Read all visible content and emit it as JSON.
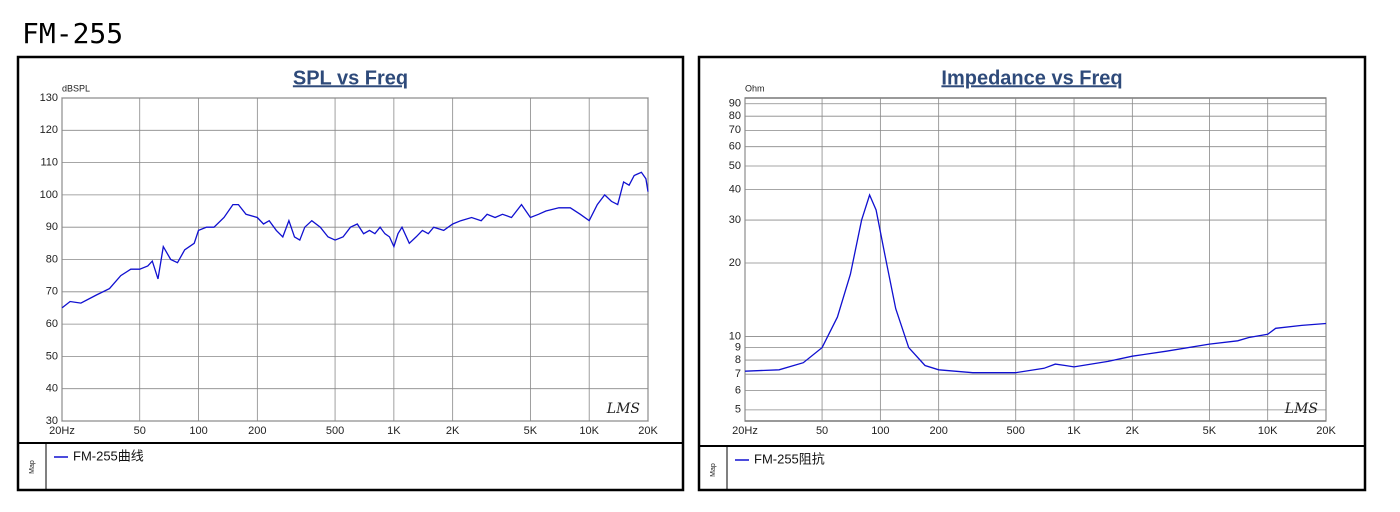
{
  "heading": "FM-255",
  "chart_data": [
    {
      "type": "line",
      "title": "SPL vs Freq",
      "y_label": "dBSPL",
      "watermark": "LMS",
      "legend_title": "Map",
      "x_scale": "log",
      "y_scale": "linear",
      "grid": true,
      "xlim": [
        20,
        20000
      ],
      "xticks": [
        {
          "value": 20,
          "label": "20Hz"
        },
        50,
        100,
        200,
        500,
        {
          "value": 1000,
          "label": "1K"
        },
        {
          "value": 2000,
          "label": "2K"
        },
        {
          "value": 5000,
          "label": "5K"
        },
        {
          "value": 10000,
          "label": "10K"
        },
        {
          "value": 20000,
          "label": "20K"
        }
      ],
      "ylim": [
        30,
        130
      ],
      "yticks": [
        30,
        40,
        50,
        60,
        70,
        80,
        90,
        100,
        110,
        120,
        130
      ],
      "x": [
        20,
        22,
        25,
        30,
        35,
        40,
        45,
        50,
        55,
        58,
        62,
        66,
        72,
        78,
        85,
        95,
        100,
        110,
        120,
        135,
        150,
        160,
        175,
        200,
        215,
        230,
        250,
        270,
        290,
        310,
        330,
        350,
        380,
        420,
        460,
        500,
        550,
        600,
        650,
        700,
        750,
        800,
        850,
        900,
        950,
        1000,
        1050,
        1100,
        1200,
        1300,
        1400,
        1500,
        1600,
        1800,
        2000,
        2200,
        2500,
        2800,
        3000,
        3300,
        3600,
        4000,
        4500,
        5000,
        5500,
        6000,
        7000,
        8000,
        9000,
        10000,
        11000,
        12000,
        13000,
        14000,
        15000,
        16000,
        17000,
        18500,
        19500,
        20000
      ],
      "series": [
        {
          "name": "FM-255曲线",
          "color": "#1010d0",
          "values": [
            65,
            67,
            66.5,
            69,
            71,
            75,
            77,
            77,
            78,
            79.5,
            74,
            84,
            80,
            79,
            83,
            85,
            89,
            90,
            90,
            93,
            97,
            97,
            94,
            93,
            91,
            92,
            89,
            87,
            92,
            87,
            86,
            90,
            92,
            90,
            87,
            86,
            87,
            90,
            91,
            88,
            89,
            88,
            90,
            88,
            87,
            84,
            88,
            90,
            85,
            87,
            89,
            88,
            90,
            89,
            91,
            92,
            93,
            92,
            94,
            93,
            94,
            93,
            97,
            93,
            94,
            95,
            96,
            96,
            94,
            92,
            97,
            100,
            98,
            97,
            104,
            103,
            106,
            107,
            105,
            101
          ]
        }
      ]
    },
    {
      "type": "line",
      "title": "Impedance vs Freq",
      "y_label": "Ohm",
      "watermark": "LMS",
      "legend_title": "Map",
      "x_scale": "log",
      "y_scale": "log",
      "grid": true,
      "xlim": [
        20,
        20000
      ],
      "xticks": [
        {
          "value": 20,
          "label": "20Hz"
        },
        50,
        100,
        200,
        500,
        {
          "value": 1000,
          "label": "1K"
        },
        {
          "value": 2000,
          "label": "2K"
        },
        {
          "value": 5000,
          "label": "5K"
        },
        {
          "value": 10000,
          "label": "10K"
        },
        {
          "value": 20000,
          "label": "20K"
        }
      ],
      "ylim": [
        4.5,
        95
      ],
      "yticks": [
        5,
        6,
        7,
        8,
        9,
        10,
        20,
        30,
        40,
        50,
        60,
        70,
        80,
        90
      ],
      "x": [
        20,
        30,
        40,
        50,
        60,
        70,
        80,
        88,
        95,
        105,
        120,
        140,
        170,
        200,
        300,
        500,
        700,
        800,
        900,
        1000,
        1500,
        2000,
        3000,
        5000,
        7000,
        8000,
        10000,
        11000,
        15000,
        20000
      ],
      "series": [
        {
          "name": "FM-255阻抗",
          "color": "#1010d0",
          "values": [
            7.2,
            7.3,
            7.8,
            9,
            12,
            18,
            30,
            38,
            33,
            22,
            13,
            9,
            7.6,
            7.3,
            7.1,
            7.1,
            7.4,
            7.7,
            7.6,
            7.5,
            7.9,
            8.3,
            8.7,
            9.3,
            9.6,
            9.9,
            10.2,
            10.8,
            11.1,
            11.3
          ]
        }
      ]
    }
  ]
}
